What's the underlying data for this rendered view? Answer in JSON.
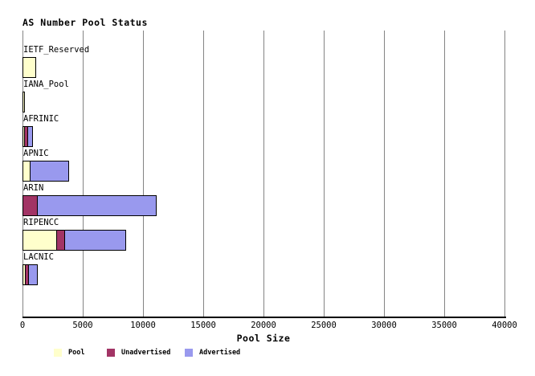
{
  "chart_data": {
    "type": "bar",
    "orientation": "horizontal",
    "title": "AS Number Pool Status",
    "xlabel": "Pool Size",
    "categories": [
      "IETF_Reserved",
      "IANA_Pool",
      "AFRINIC",
      "APNIC",
      "ARIN",
      "RIPENCC",
      "LACNIC"
    ],
    "series": [
      {
        "name": "Pool",
        "color": "#FFFFCC",
        "values": [
          1000,
          50,
          70,
          500,
          0,
          2750,
          130
        ]
      },
      {
        "name": "Unadvertised",
        "color": "#A23465",
        "values": [
          0,
          0,
          200,
          0,
          1150,
          600,
          180
        ]
      },
      {
        "name": "Advertised",
        "color": "#9999EE",
        "values": [
          0,
          0,
          330,
          3100,
          9800,
          5000,
          690
        ]
      }
    ],
    "xlim": [
      0,
      40000
    ],
    "xticks": [
      0,
      5000,
      10000,
      15000,
      20000,
      25000,
      30000,
      35000,
      40000
    ],
    "grid": true,
    "gridline_color": "#848484",
    "axis_color": "#000000",
    "legend_position": "bottom"
  }
}
